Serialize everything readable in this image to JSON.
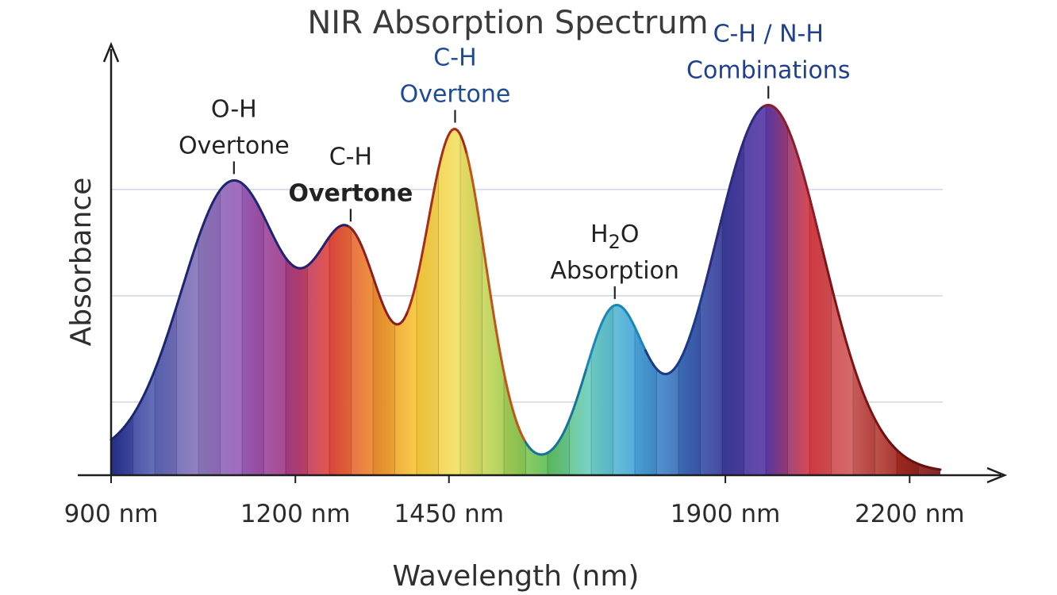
{
  "chart_data": {
    "type": "area",
    "title": "NIR Absorption Spectrum",
    "xlabel": "Wavelength (nm)",
    "ylabel": "Absorbance",
    "xlim": [
      900,
      2250
    ],
    "ylim": [
      0,
      1
    ],
    "grid": "horizontal",
    "x_ticks": [
      {
        "value": 900,
        "label": "900 nm"
      },
      {
        "value": 1200,
        "label": "1200 nm"
      },
      {
        "value": 1450,
        "label": "1450 nm"
      },
      {
        "value": 1900,
        "label": "1900 nm"
      },
      {
        "value": 2200,
        "label": "2200 nm"
      }
    ],
    "gridlines": [
      0.17,
      0.42,
      0.67
    ],
    "baseline": 0.04,
    "peaks": [
      {
        "center": 1100,
        "height": 0.66,
        "width": 85
      },
      {
        "center": 1290,
        "height": 0.5,
        "width": 55
      },
      {
        "center": 1460,
        "height": 0.79,
        "width": 50
      },
      {
        "center": 1720,
        "height": 0.37,
        "width": 48
      },
      {
        "center": 1970,
        "height": 0.86,
        "width": 88
      }
    ],
    "colors": [
      "#25308f",
      "#5a64b4",
      "#8b78bd",
      "#9a5fba",
      "#a33c88",
      "#e2483f",
      "#ed8a30",
      "#f8c83a",
      "#f2e36a",
      "#a8cf55",
      "#5fbf5b",
      "#6fd0c6",
      "#49a7dc",
      "#3d70bb",
      "#3a3c9a",
      "#5b3ba8",
      "#d73b44",
      "#d06060",
      "#a52b22",
      "#7a1a1a"
    ],
    "annotations": [
      {
        "lines": [
          "O-H",
          "Overtone"
        ],
        "x": 1100,
        "color": "#222222",
        "bold": false
      },
      {
        "lines": [
          "C-H",
          "Overtone"
        ],
        "x": 1290,
        "color": "#222222",
        "bold_second": true
      },
      {
        "lines": [
          "C-H",
          "Overtone"
        ],
        "x": 1460,
        "color": "#1f4b95",
        "bold": false
      },
      {
        "lines": [
          "H2O",
          "Absorption"
        ],
        "x": 1720,
        "color": "#222222",
        "bold": false
      },
      {
        "lines": [
          "C-H / N-H",
          "Combinations"
        ],
        "x": 1970,
        "color": "#1f3f8f",
        "bold": false
      }
    ]
  }
}
